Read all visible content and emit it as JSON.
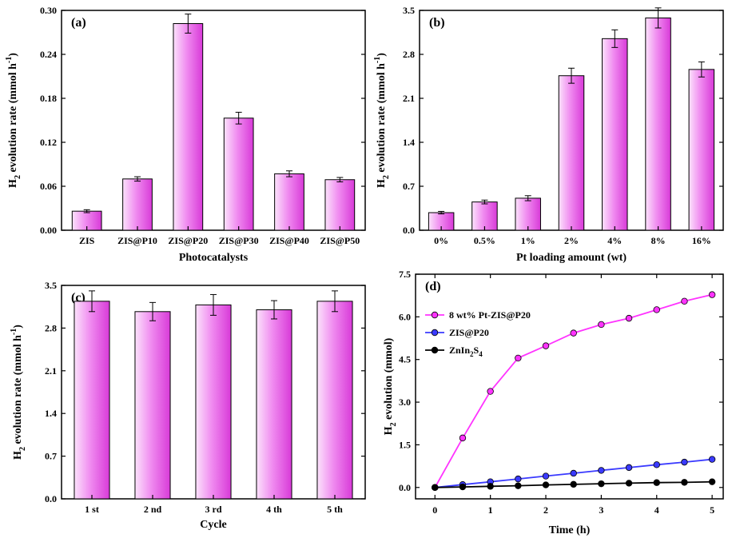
{
  "colors": {
    "bar_light": "#fbe2fb",
    "bar_mid": "#f08cf0",
    "bar_dark": "#d83ad8",
    "bar_edge": "#000000",
    "series_magenta": "#ff33ff",
    "series_blue": "#3a3aff",
    "series_black": "#000000"
  },
  "chart_data": [
    {
      "id": "a",
      "panel_label": "(a)",
      "type": "bar",
      "xlabel": "Photocatalysts",
      "ylabel_main": "H",
      "ylabel_sub": "2",
      "ylabel_rest": " evolution rate (mmol h",
      "ylabel_sup": "-1",
      "ylabel_end": ")",
      "ylim": [
        0,
        0.3
      ],
      "yticks": [
        "0.00",
        "0.06",
        "0.12",
        "0.18",
        "0.24",
        "0.30"
      ],
      "ytick_values": [
        0,
        0.06,
        0.12,
        0.18,
        0.24,
        0.3
      ],
      "categories": [
        "ZIS",
        "ZIS@P10",
        "ZIS@P20",
        "ZIS@P30",
        "ZIS@P40",
        "ZIS@P50"
      ],
      "values": [
        0.026,
        0.07,
        0.282,
        0.153,
        0.077,
        0.069
      ],
      "errors": [
        0.002,
        0.003,
        0.013,
        0.008,
        0.004,
        0.003
      ]
    },
    {
      "id": "b",
      "panel_label": "(b)",
      "type": "bar",
      "xlabel": "Pt loading amount (wt)",
      "ylabel_main": "H",
      "ylabel_sub": "2",
      "ylabel_rest": " evolution rate (mmol h",
      "ylabel_sup": "-1",
      "ylabel_end": ")",
      "ylim": [
        0,
        3.5
      ],
      "yticks": [
        "0.0",
        "0.7",
        "1.4",
        "2.1",
        "2.8",
        "3.5"
      ],
      "ytick_values": [
        0,
        0.7,
        1.4,
        2.1,
        2.8,
        3.5
      ],
      "categories": [
        "0%",
        "0.5%",
        "1%",
        "2%",
        "4%",
        "8%",
        "16%"
      ],
      "values": [
        0.28,
        0.45,
        0.51,
        2.46,
        3.05,
        3.38,
        2.56
      ],
      "errors": [
        0.02,
        0.03,
        0.04,
        0.12,
        0.14,
        0.16,
        0.12
      ]
    },
    {
      "id": "c",
      "panel_label": "(c)",
      "type": "bar",
      "xlabel": "Cycle",
      "ylabel_main": "H",
      "ylabel_sub": "2",
      "ylabel_rest": " evolution rate (mmol h",
      "ylabel_sup": "-1",
      "ylabel_end": ")",
      "ylim": [
        0,
        3.5
      ],
      "yticks": [
        "0.0",
        "0.7",
        "1.4",
        "2.1",
        "2.8",
        "3.5"
      ],
      "ytick_values": [
        0,
        0.7,
        1.4,
        2.1,
        2.8,
        3.5
      ],
      "categories": [
        "1 st",
        "2 nd",
        "3 rd",
        "4 th",
        "5 th"
      ],
      "values": [
        3.24,
        3.07,
        3.18,
        3.1,
        3.24
      ],
      "errors": [
        0.17,
        0.15,
        0.17,
        0.15,
        0.17
      ]
    },
    {
      "id": "d",
      "panel_label": "(d)",
      "type": "line",
      "xlabel": "Time (h)",
      "ylabel_main": "H",
      "ylabel_sub": "2",
      "ylabel_rest": " evolution (mmol)",
      "xlim": [
        -0.35,
        5.2
      ],
      "ylim": [
        -0.4,
        7.5
      ],
      "xticks": [
        "0",
        "1",
        "2",
        "3",
        "4",
        "5"
      ],
      "xtick_values": [
        0,
        1,
        2,
        3,
        4,
        5
      ],
      "yticks": [
        "0.0",
        "1.5",
        "3.0",
        "4.5",
        "6.0",
        "7.5"
      ],
      "ytick_values": [
        0,
        1.5,
        3.0,
        4.5,
        6.0,
        7.5
      ],
      "x": [
        0,
        0.5,
        1,
        1.5,
        2,
        2.5,
        3,
        3.5,
        4,
        4.5,
        5
      ],
      "series": [
        {
          "legend_main": "8 wt% Pt-ZIS@P20",
          "color_key": "series_magenta",
          "values": [
            0,
            1.74,
            3.38,
            4.55,
            4.98,
            5.43,
            5.73,
            5.95,
            6.25,
            6.55,
            6.78
          ]
        },
        {
          "legend_main": "ZIS@P20",
          "color_key": "series_blue",
          "values": [
            0,
            0.1,
            0.2,
            0.3,
            0.4,
            0.5,
            0.6,
            0.7,
            0.8,
            0.89,
            0.99
          ]
        },
        {
          "legend_main": "ZnIn",
          "legend_sub1": "2",
          "legend_mid": "S",
          "legend_sub2": "4",
          "color_key": "series_black",
          "values": [
            0,
            0.02,
            0.04,
            0.06,
            0.09,
            0.11,
            0.13,
            0.15,
            0.17,
            0.18,
            0.2
          ]
        }
      ],
      "legend_position": "top-left"
    }
  ]
}
